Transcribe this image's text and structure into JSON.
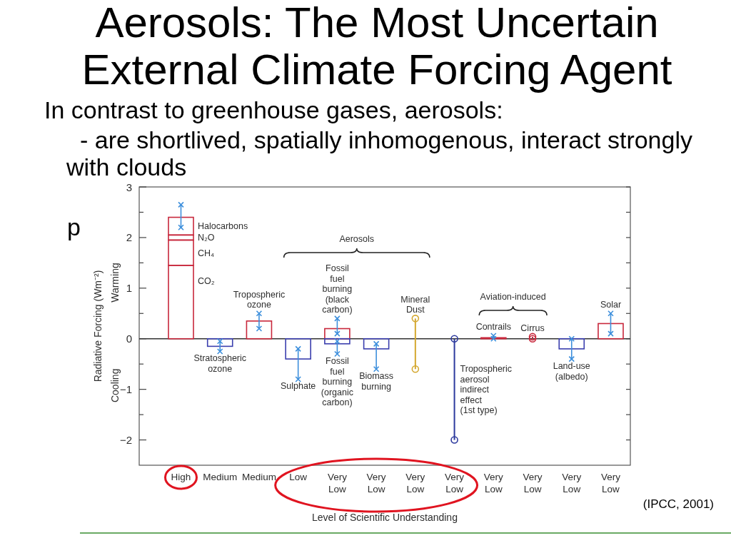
{
  "chart_data": {
    "type": "bar",
    "title": "Aerosols: The Most Uncertain External Climate Forcing Agent",
    "subtitle": "In contrast to greenhouse gases, aerosols:",
    "xlabel": "Level of Scientific Understanding",
    "ylabel": "Radiative Forcing (Wm⁻²)",
    "annotations": [
      "- are shortlived, spatially inhomogenous, interact strongly with clouds",
      "p",
      "Warming",
      "Cooling",
      "Aerosols",
      "Aviation-induced",
      "(IPCC, 2001)"
    ],
    "categories": [
      "High",
      "Medium",
      "Medium",
      "Low",
      "Very Low",
      "Very Low",
      "Very Low",
      "Very Low",
      "Very Low",
      "Very Low",
      "Very Low",
      "Very Low"
    ],
    "series": [
      {
        "name": "CO₂",
        "color": "#c8283c",
        "values": [
          1.45,
          null,
          null,
          null,
          null,
          null,
          null,
          null,
          null,
          null,
          null,
          null
        ]
      },
      {
        "name": "CH₄",
        "color": "#c8283c",
        "values": [
          0.5,
          null,
          null,
          null,
          null,
          null,
          null,
          null,
          null,
          null,
          null,
          null
        ]
      },
      {
        "name": "N₂O",
        "color": "#c8283c",
        "values": [
          0.1,
          null,
          null,
          null,
          null,
          null,
          null,
          null,
          null,
          null,
          null,
          null
        ]
      },
      {
        "name": "Halocarbons",
        "color": "#c8283c",
        "values": [
          0.35,
          null,
          null,
          null,
          null,
          null,
          null,
          null,
          null,
          null,
          null,
          null
        ],
        "errors": [
          [
            2.2,
            2.65
          ],
          null,
          null,
          null,
          null,
          null,
          null,
          null,
          null,
          null,
          null,
          null
        ]
      },
      {
        "name": "Stratospheric ozone",
        "color": "#3b3fae",
        "values": [
          null,
          -0.15,
          null,
          null,
          null,
          null,
          null,
          null,
          null,
          null,
          null,
          null
        ],
        "errors": [
          null,
          [
            -0.25,
            -0.05
          ],
          null,
          null,
          null,
          null,
          null,
          null,
          null,
          null,
          null,
          null
        ]
      },
      {
        "name": "Tropospheric ozone",
        "color": "#c8283c",
        "values": [
          null,
          null,
          0.35,
          null,
          null,
          null,
          null,
          null,
          null,
          null,
          null,
          null
        ],
        "errors": [
          null,
          null,
          [
            0.2,
            0.5
          ],
          null,
          null,
          null,
          null,
          null,
          null,
          null,
          null,
          null
        ]
      },
      {
        "name": "Sulphate",
        "color": "#3b3fae",
        "values": [
          null,
          null,
          null,
          -0.4,
          null,
          null,
          null,
          null,
          null,
          null,
          null,
          null
        ],
        "errors": [
          null,
          null,
          null,
          [
            -0.8,
            -0.2
          ],
          null,
          null,
          null,
          null,
          null,
          null,
          null,
          null
        ]
      },
      {
        "name": "Fossil fuel burning (black carbon)",
        "color": "#c8283c",
        "values": [
          null,
          null,
          null,
          null,
          0.2,
          null,
          null,
          null,
          null,
          null,
          null,
          null
        ],
        "errors": [
          null,
          null,
          null,
          null,
          [
            0.1,
            0.4
          ],
          null,
          null,
          null,
          null,
          null,
          null,
          null
        ]
      },
      {
        "name": "Fossil fuel burning (organic carbon)",
        "color": "#3b3fae",
        "values": [
          null,
          null,
          null,
          null,
          -0.1,
          null,
          null,
          null,
          null,
          null,
          null,
          null
        ],
        "errors": [
          null,
          null,
          null,
          null,
          [
            -0.3,
            -0.05
          ],
          null,
          null,
          null,
          null,
          null,
          null,
          null
        ]
      },
      {
        "name": "Biomass burning",
        "color": "#3b3fae",
        "values": [
          null,
          null,
          null,
          null,
          null,
          -0.2,
          null,
          null,
          null,
          null,
          null,
          null
        ],
        "errors": [
          null,
          null,
          null,
          null,
          null,
          [
            -0.6,
            -0.1
          ],
          null,
          null,
          null,
          null,
          null,
          null
        ]
      },
      {
        "name": "Mineral Dust",
        "color": "#d4a830",
        "values": [
          null,
          null,
          null,
          null,
          null,
          null,
          1.0,
          null,
          null,
          null,
          null,
          null
        ],
        "base": [
          null,
          null,
          null,
          null,
          null,
          null,
          -0.6,
          null,
          null,
          null,
          null,
          null
        ]
      },
      {
        "name": "Tropospheric aerosol indirect effect (1st type)",
        "color": "#2d3a9e",
        "values": [
          null,
          null,
          null,
          null,
          null,
          null,
          null,
          2,
          null,
          null,
          null,
          null
        ],
        "base": [
          null,
          null,
          null,
          null,
          null,
          null,
          null,
          -2,
          null,
          null,
          null,
          null
        ]
      },
      {
        "name": "Contrails",
        "color": "#c8283c",
        "values": [
          null,
          null,
          null,
          null,
          null,
          null,
          null,
          null,
          0.02,
          null,
          null,
          null
        ],
        "errors": [
          null,
          null,
          null,
          null,
          null,
          null,
          null,
          null,
          [
            0,
            0.06
          ],
          null,
          null,
          null
        ]
      },
      {
        "name": "Cirrus",
        "color": "#c8283c",
        "values": [
          null,
          null,
          null,
          null,
          null,
          null,
          null,
          null,
          null,
          0.04,
          null,
          null
        ],
        "base": [
          null,
          null,
          null,
          null,
          null,
          null,
          null,
          null,
          null,
          0,
          null,
          null
        ]
      },
      {
        "name": "Land-use (albedo)",
        "color": "#3b3fae",
        "values": [
          null,
          null,
          null,
          null,
          null,
          null,
          null,
          null,
          null,
          null,
          -0.2,
          null
        ],
        "errors": [
          null,
          null,
          null,
          null,
          null,
          null,
          null,
          null,
          null,
          null,
          [
            -0.4,
            0
          ],
          null
        ]
      },
      {
        "name": "Solar",
        "color": "#c8283c",
        "values": [
          null,
          null,
          null,
          null,
          null,
          null,
          null,
          null,
          null,
          null,
          null,
          0.3
        ],
        "errors": [
          null,
          null,
          null,
          null,
          null,
          null,
          null,
          null,
          null,
          null,
          null,
          [
            0.1,
            0.5
          ]
        ]
      }
    ],
    "stacked": true,
    "ylim": [
      -2.5,
      3
    ],
    "yticks": [
      -2,
      {
        "value": -1.5,
        "label": null
      },
      -1,
      {
        "value": -0.5,
        "label": null
      },
      0,
      {
        "value": 0.5,
        "label": null
      },
      1,
      {
        "value": 1.5,
        "label": null
      },
      2,
      {
        "value": 2.5,
        "label": null
      },
      3
    ],
    "ref_lines": [
      {
        "axis": "y",
        "value": 0,
        "color": "#333333"
      }
    ]
  }
}
